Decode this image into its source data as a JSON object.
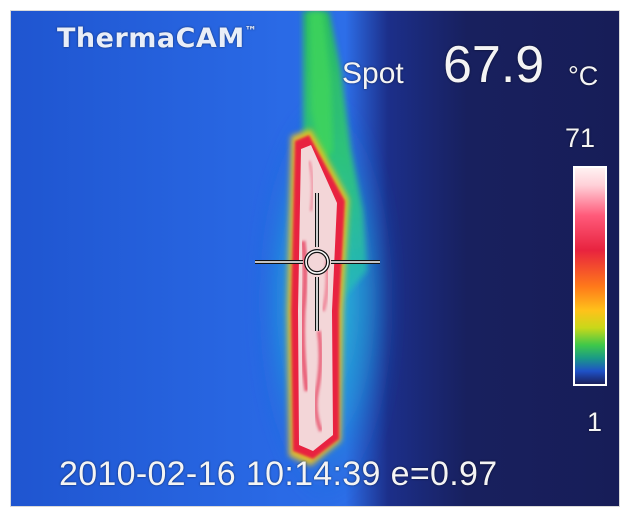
{
  "camera": {
    "brand": "ThermaCAM",
    "trademark": "™"
  },
  "spot": {
    "label": "Spot",
    "value": "67.9",
    "unit": "°C"
  },
  "scale": {
    "max_label": "71",
    "min_label": "1",
    "palette": [
      "#fff2f2",
      "#ff5a7a",
      "#e8233f",
      "#ff7a1a",
      "#ffc21a",
      "#3ec84a",
      "#1f52c8",
      "#1a1f5c"
    ]
  },
  "footer": {
    "date": "2010-02-16",
    "time": "10:14:39",
    "emissivity": "e=0.97"
  },
  "colors": {
    "background_blue": "#1e5ad8",
    "background_dark": "#1a1f5c",
    "hot_core": "#f7e6e6",
    "hot_edge": "#e8233f"
  },
  "icons": {
    "crosshair": "crosshair-icon"
  }
}
